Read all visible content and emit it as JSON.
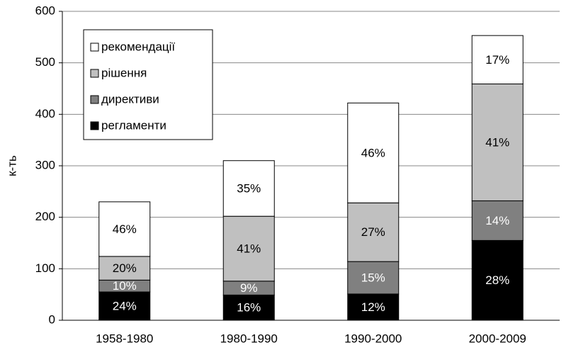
{
  "chart_data": {
    "type": "stacked_bar",
    "categories": [
      "1958-1980",
      "1980-1990",
      "1990-2000",
      "2000-2009"
    ],
    "y_label": "к-ть",
    "series": [
      {
        "name": "регламенти",
        "color": "#000000",
        "values": [
          55,
          49,
          51,
          155
        ],
        "value_labels": [
          "24%",
          "16%",
          "12%",
          "28%"
        ]
      },
      {
        "name": "директиви",
        "color": "#808080",
        "values": [
          23,
          27,
          63,
          77
        ],
        "value_labels": [
          "10%",
          "9%",
          "15%",
          "14%"
        ]
      },
      {
        "name": "рішення",
        "color": "#c0c0c0",
        "values": [
          46,
          126,
          114,
          227
        ],
        "value_labels": [
          "20%",
          "41%",
          "27%",
          "41%"
        ]
      },
      {
        "name": "рекомендації",
        "color": "#ffffff",
        "values": [
          106,
          108,
          194,
          94
        ],
        "value_labels": [
          "46%",
          "35%",
          "46%",
          "17%"
        ]
      }
    ],
    "ylim": [
      0,
      600
    ],
    "yticks": [
      0,
      100,
      200,
      300,
      400,
      500,
      600
    ],
    "grid": true,
    "legend": "upper left"
  }
}
